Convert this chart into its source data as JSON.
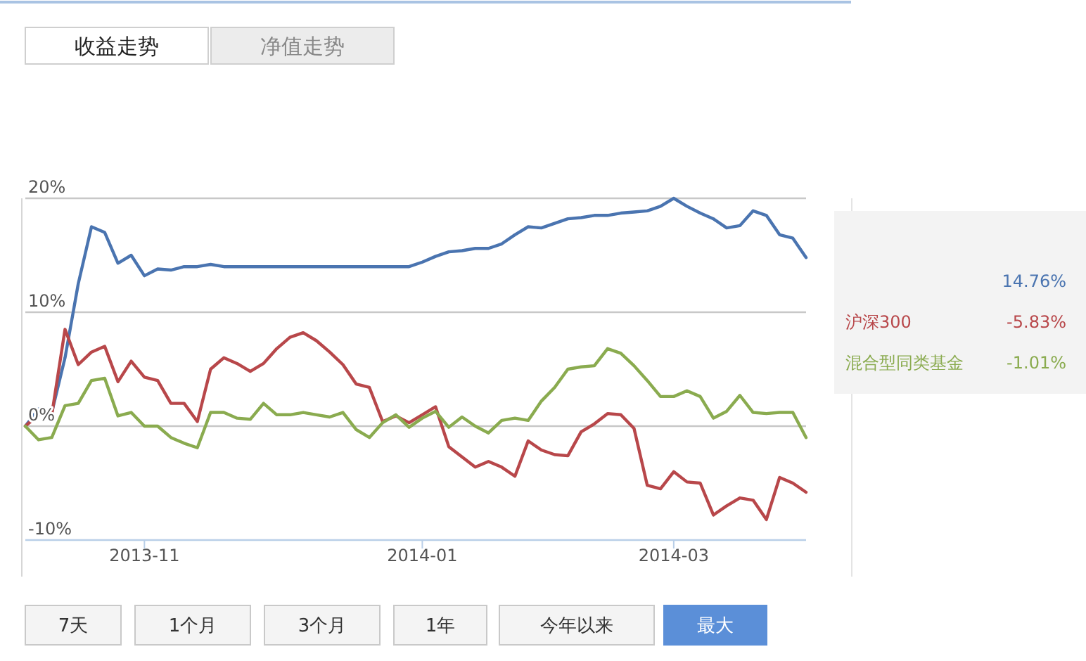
{
  "chart_data": {
    "type": "line",
    "categories": [
      null,
      null,
      null,
      null,
      null,
      null,
      null,
      null,
      null,
      "2013-11",
      null,
      null,
      null,
      null,
      null,
      null,
      null,
      null,
      null,
      null,
      null,
      null,
      null,
      null,
      null,
      null,
      null,
      null,
      null,
      null,
      "2014-01",
      null,
      null,
      null,
      null,
      null,
      null,
      null,
      null,
      null,
      null,
      null,
      null,
      null,
      null,
      null,
      null,
      null,
      null,
      "2014-03",
      null,
      null,
      null,
      null,
      null,
      null,
      null,
      null,
      null,
      null
    ],
    "series": [
      {
        "color": "#4a74b0",
        "values": [
          0,
          1.5,
          1.2,
          6,
          12.5,
          17.5,
          17,
          14.3,
          15,
          13.2,
          13.8,
          13.7,
          14,
          14,
          14.2,
          14,
          14,
          14,
          14,
          14,
          14,
          14,
          14,
          14,
          14,
          14,
          14,
          14,
          14,
          14,
          14.4,
          14.9,
          15.3,
          15.4,
          15.6,
          15.6,
          16,
          16.8,
          17.5,
          17.4,
          17.8,
          18.2,
          18.3,
          18.5,
          18.5,
          18.7,
          18.8,
          18.9,
          19.3,
          20,
          19.3,
          18.7,
          18.2,
          17.4,
          17.6,
          18.9,
          18.5,
          16.8,
          16.5,
          14.8
        ]
      },
      {
        "name": "沪深300",
        "color": "#b8474a",
        "values": [
          0,
          1,
          1,
          8.5,
          5.4,
          6.5,
          7,
          3.9,
          5.7,
          4.3,
          4,
          2,
          2,
          0.4,
          5,
          6,
          5.5,
          4.8,
          5.5,
          6.8,
          7.8,
          8.2,
          7.5,
          6.5,
          5.4,
          3.7,
          3.4,
          0.4,
          0.9,
          0.3,
          1,
          1.7,
          -1.8,
          -2.7,
          -3.6,
          -3.1,
          -3.6,
          -4.4,
          -1.3,
          -2.1,
          -2.5,
          -2.6,
          -0.5,
          0.2,
          1.1,
          1,
          -0.2,
          -5.2,
          -5.5,
          -4,
          -4.9,
          -5,
          -7.8,
          -7,
          -6.3,
          -6.5,
          -8.2,
          -4.5,
          -5,
          -5.8
        ]
      },
      {
        "name": "混合型同类基金",
        "color": "#8aab4f",
        "values": [
          0,
          -1.2,
          -1,
          1.8,
          2,
          4,
          4.2,
          0.9,
          1.2,
          0,
          0,
          -1,
          -1.5,
          -1.9,
          1.2,
          1.2,
          0.7,
          0.6,
          2,
          1,
          1,
          1.2,
          1,
          0.8,
          1.2,
          -0.3,
          -1,
          0.3,
          1,
          -0.1,
          0.7,
          1.3,
          -0.1,
          0.8,
          0,
          -0.6,
          0.5,
          0.7,
          0.5,
          2.2,
          3.4,
          5,
          5.2,
          5.3,
          6.8,
          6.4,
          5.3,
          4,
          2.6,
          2.6,
          3.1,
          2.6,
          0.7,
          1.3,
          2.7,
          1.2,
          1.1,
          1.2,
          1.2,
          -1
        ]
      }
    ],
    "ylim": [
      -10,
      20
    ],
    "yticks": [
      {
        "value": -10,
        "label": "-10%"
      },
      {
        "value": 0,
        "label": "0%"
      },
      {
        "value": 10,
        "label": "10%"
      },
      {
        "value": 20,
        "label": "20%"
      }
    ],
    "grid": "y",
    "legend": "right",
    "marker": "none",
    "line_style": "solid",
    "annotations": [
      "收益走势",
      "净值走势",
      "7天",
      "1个月",
      "3个月",
      "1年",
      "今年以来",
      "最大",
      "14.76%",
      "-5.83%",
      "-1.01%"
    ]
  }
}
